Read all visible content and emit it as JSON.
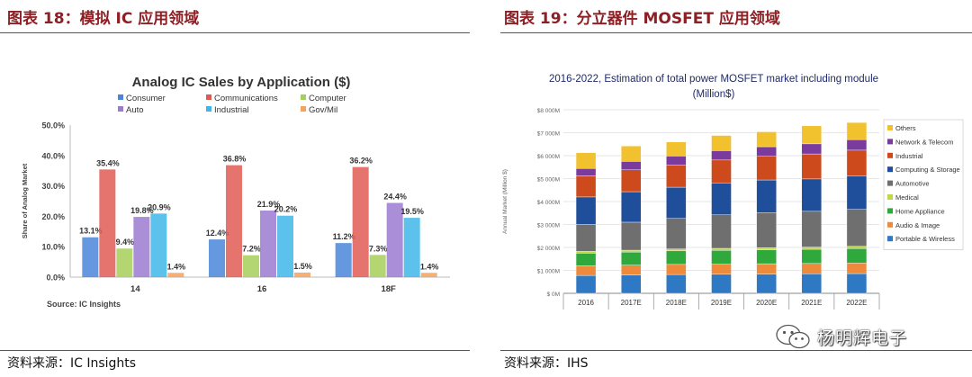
{
  "left_panel": {
    "title": "图表 18：模拟 IC 应用领域",
    "source": "资料来源：IC Insights"
  },
  "right_panel": {
    "title": "图表 19：分立器件 MOSFET 应用领域",
    "source": "资料来源：IHS"
  },
  "watermark": {
    "text": "杨明辉电子",
    "icon": "wechat-icon"
  },
  "chart_data": [
    {
      "type": "bar",
      "title": "Analog IC Sales by Application ($)",
      "xlabel": "",
      "ylabel": "Share of Analog Market",
      "ylim": [
        0,
        50
      ],
      "yticks": [
        "0.0%",
        "10.0%",
        "20.0%",
        "30.0%",
        "40.0%",
        "50.0%"
      ],
      "categories": [
        "14",
        "16",
        "18F"
      ],
      "source_note": "Source: IC Insights",
      "legend_position": "top",
      "series": [
        {
          "name": "Consumer",
          "color": "#4a86d8",
          "values": [
            13.1,
            12.4,
            11.2
          ],
          "labels": [
            "13.1%",
            "12.4%",
            "11.2%"
          ]
        },
        {
          "name": "Communications",
          "color": "#e05a55",
          "values": [
            35.4,
            36.8,
            36.2
          ],
          "labels": [
            "35.4%",
            "36.8%",
            "36.2%"
          ]
        },
        {
          "name": "Computer",
          "color": "#a6cf5a",
          "values": [
            9.4,
            7.2,
            7.3
          ],
          "labels": [
            "9.4%",
            "7.2%",
            "7.3%"
          ]
        },
        {
          "name": "Auto",
          "color": "#9b7ad0",
          "values": [
            19.8,
            21.9,
            24.4
          ],
          "labels": [
            "19.8%",
            "21.9%",
            "24.4%"
          ]
        },
        {
          "name": "Industrial",
          "color": "#3fb6e8",
          "values": [
            20.9,
            20.2,
            19.5
          ],
          "labels": [
            "20.9%",
            "20.2%",
            "19.5%"
          ]
        },
        {
          "name": "Gov/Mil",
          "color": "#f5a25a",
          "values": [
            1.4,
            1.5,
            1.4
          ],
          "labels": [
            "1.4%",
            "1.5%",
            "1.4%"
          ]
        }
      ]
    },
    {
      "type": "bar",
      "stacked": true,
      "title": "2016-2022, Estimation of total power MOSFET market including module",
      "subtitle": "(Million$)",
      "xlabel": "",
      "ylabel": "Annual Market (Million $)",
      "ylim": [
        0,
        8000
      ],
      "yticks": [
        "$ 0M",
        "$1 000M",
        "$2 000M",
        "$3 000M",
        "$4 000M",
        "$5 000M",
        "$6 000M",
        "$7 000M",
        "$8 000M"
      ],
      "categories": [
        "2016",
        "2017E",
        "2018E",
        "2019E",
        "2020E",
        "2021E",
        "2022E"
      ],
      "legend_position": "right",
      "series": [
        {
          "name": "Portable & Wireless",
          "color": "#2f78c4",
          "values": [
            780,
            800,
            820,
            830,
            840,
            850,
            860
          ]
        },
        {
          "name": "Audio & Image",
          "color": "#ee8a3a",
          "values": [
            420,
            430,
            440,
            440,
            450,
            450,
            460
          ]
        },
        {
          "name": "Home Appliance",
          "color": "#2fa83c",
          "values": [
            550,
            570,
            590,
            600,
            610,
            620,
            630
          ]
        },
        {
          "name": "Medical",
          "color": "#c2d64a",
          "values": [
            80,
            80,
            85,
            90,
            90,
            95,
            100
          ]
        },
        {
          "name": "Automotive",
          "color": "#6f6f6f",
          "values": [
            1170,
            1220,
            1330,
            1460,
            1530,
            1560,
            1610
          ]
        },
        {
          "name": "Computing & Storage",
          "color": "#1f4e9a",
          "values": [
            1200,
            1330,
            1360,
            1390,
            1420,
            1410,
            1450
          ]
        },
        {
          "name": "Industrial",
          "color": "#cc4a1c",
          "values": [
            920,
            950,
            960,
            1000,
            1030,
            1090,
            1130
          ]
        },
        {
          "name": "Network & Telecom",
          "color": "#7a3b9c",
          "values": [
            320,
            370,
            400,
            410,
            420,
            440,
            460
          ]
        },
        {
          "name": "Others",
          "color": "#f2c12e",
          "values": [
            690,
            670,
            610,
            660,
            650,
            785,
            745
          ]
        }
      ]
    }
  ]
}
